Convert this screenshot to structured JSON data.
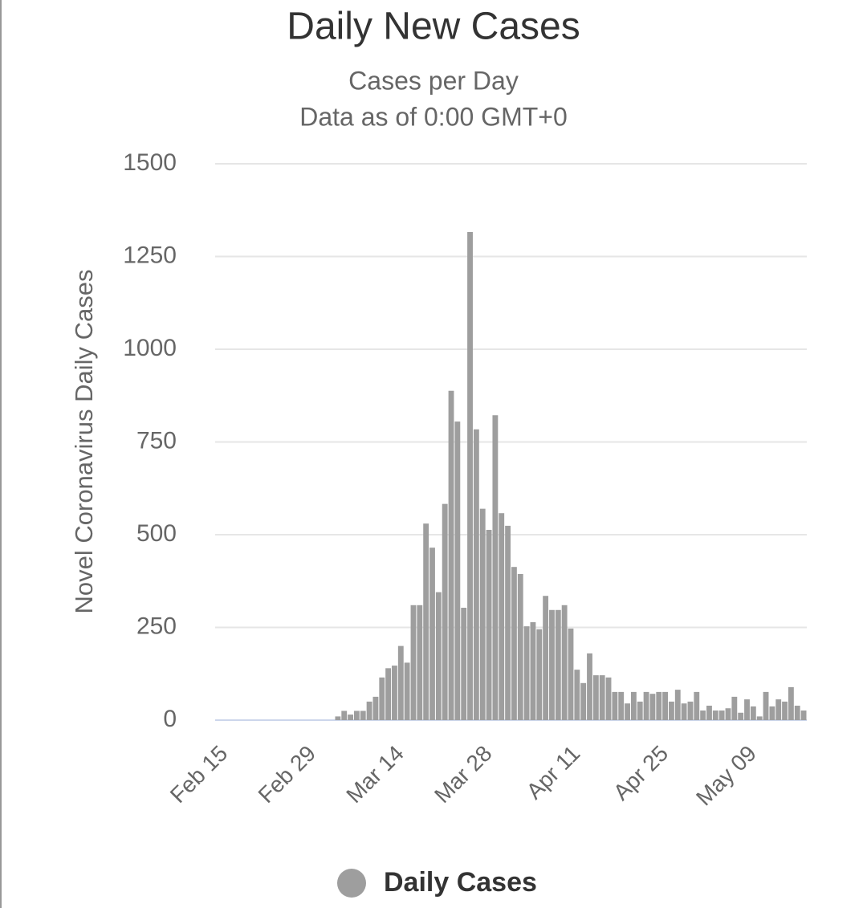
{
  "chart_data": {
    "type": "bar",
    "title": "Daily New Cases",
    "subtitle": [
      "Cases per Day",
      "Data as of 0:00 GMT+0"
    ],
    "y_axis_label": "Novel Coronavirus Daily Cases",
    "categories": [
      "Feb 15",
      null,
      null,
      null,
      null,
      null,
      null,
      null,
      null,
      null,
      null,
      null,
      null,
      null,
      "Feb 29",
      null,
      null,
      null,
      null,
      null,
      null,
      null,
      null,
      null,
      null,
      null,
      null,
      null,
      "Mar 14",
      null,
      null,
      null,
      null,
      null,
      null,
      null,
      null,
      null,
      null,
      null,
      null,
      null,
      "Mar 28",
      null,
      null,
      null,
      null,
      null,
      null,
      null,
      null,
      null,
      null,
      null,
      null,
      null,
      "Apr 11",
      null,
      null,
      null,
      null,
      null,
      null,
      null,
      null,
      null,
      null,
      null,
      null,
      null,
      "Apr 25",
      null,
      null,
      null,
      null,
      null,
      null,
      null,
      null,
      null,
      null,
      null,
      null,
      null,
      "May 09",
      null,
      null,
      null,
      null,
      null,
      null,
      null,
      null,
      null
    ],
    "series": [
      {
        "name": "Daily Cases",
        "color": "#9e9e9e",
        "values": [
          0,
          0,
          0,
          0,
          0,
          0,
          0,
          0,
          0,
          0,
          0,
          0,
          0,
          0,
          0,
          0,
          0,
          0,
          0,
          10,
          25,
          15,
          25,
          25,
          50,
          63,
          115,
          140,
          147,
          200,
          155,
          310,
          310,
          530,
          465,
          345,
          583,
          888,
          805,
          303,
          1316,
          784,
          570,
          513,
          822,
          558,
          524,
          413,
          394,
          253,
          264,
          245,
          335,
          297,
          297,
          310,
          247,
          136,
          100,
          180,
          121,
          121,
          115,
          76,
          76,
          45,
          76,
          50,
          76,
          71,
          76,
          76,
          50,
          82,
          45,
          50,
          76,
          26,
          39,
          26,
          26,
          32,
          63,
          20,
          56,
          37,
          10,
          76,
          37,
          56,
          50,
          89,
          39,
          26
        ]
      }
    ],
    "ylim": [
      0,
      1500
    ],
    "yticks": [
      0,
      250,
      500,
      750,
      1000,
      1250,
      1500
    ],
    "grid": true
  }
}
